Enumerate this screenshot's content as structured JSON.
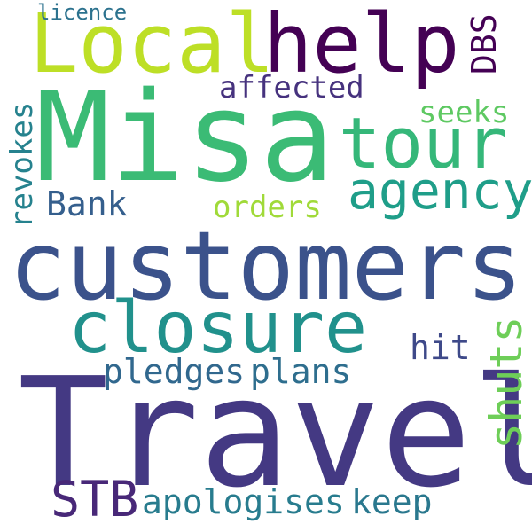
{
  "words": [
    {
      "text": "Travel",
      "color": "#443983"
    },
    {
      "text": "Misa",
      "color": "#3bbb75"
    },
    {
      "text": "customers",
      "color": "#3b528b"
    },
    {
      "text": "Local",
      "color": "#bddf26"
    },
    {
      "text": "help",
      "color": "#440154"
    },
    {
      "text": "closure",
      "color": "#21918c"
    },
    {
      "text": "tour",
      "color": "#35b779"
    },
    {
      "text": "agency",
      "color": "#1f9e89"
    },
    {
      "text": "shuts",
      "color": "#6ece58"
    },
    {
      "text": "STB",
      "color": "#482878"
    },
    {
      "text": "apologises",
      "color": "#287c8e"
    },
    {
      "text": "keep",
      "color": "#2a788e"
    },
    {
      "text": "pledges",
      "color": "#31688e"
    },
    {
      "text": "plans",
      "color": "#2e6e8e"
    },
    {
      "text": "hit",
      "color": "#3e4989"
    },
    {
      "text": "Bank",
      "color": "#355f8d"
    },
    {
      "text": "orders",
      "color": "#a0da39"
    },
    {
      "text": "affected",
      "color": "#46327e"
    },
    {
      "text": "seeks",
      "color": "#5ec962"
    },
    {
      "text": "revokes",
      "color": "#26828e"
    },
    {
      "text": "DBS",
      "color": "#440154"
    },
    {
      "text": "licence",
      "color": "#2c728e"
    }
  ]
}
